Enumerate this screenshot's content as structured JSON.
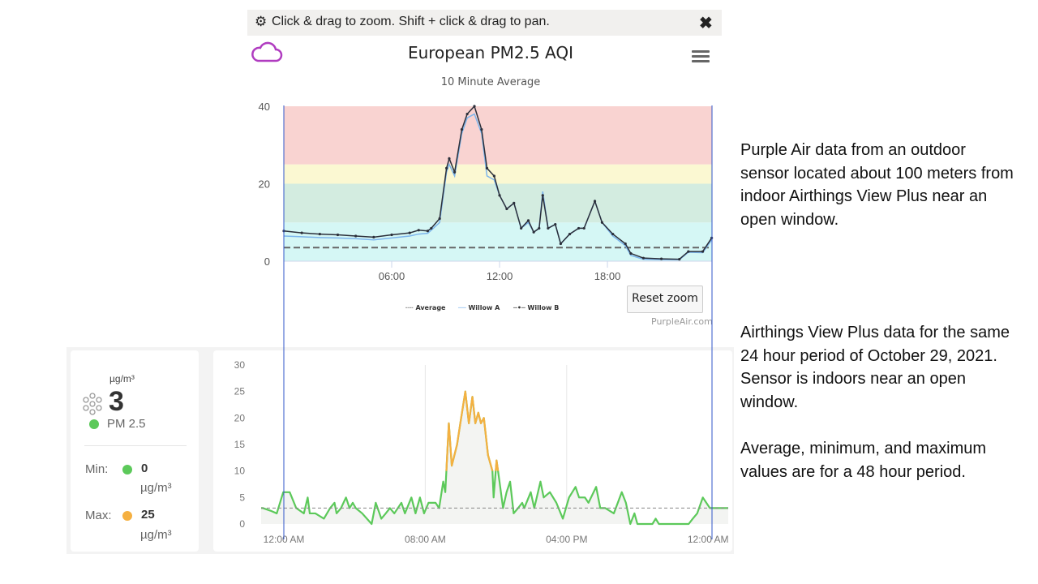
{
  "purpleair": {
    "toolbar_message": "Click & drag to zoom. Shift + click & drag to pan.",
    "title": "European PM2.5 AQI",
    "subtitle": "10 Minute Average",
    "reset_zoom_label": "Reset zoom",
    "credit": "PurpleAir.com",
    "logo_color": "#b03cc0"
  },
  "airthings": {
    "unit": "µg/m³",
    "current_value": "3",
    "sensor_label": "PM 2.5",
    "min_label": "Min:",
    "min_value": "0",
    "max_label": "Max:",
    "max_value": "25",
    "good_color": "#5cc95a",
    "warn_color": "#f5b041"
  },
  "notes": {
    "purpleair": "Purple Air data from an outdoor sensor located about 100 meters from indoor Airthings View Plus near an open window.",
    "airthings": "Airthings View Plus data for the same 24 hour period of October 29, 2021. Sensor is indoors near an open window.",
    "stats": "Average, minimum, and maximum values are for a 48 hour period."
  },
  "chart_data": [
    {
      "type": "line",
      "title": "European PM2.5 AQI",
      "subtitle": "10 Minute Average",
      "xlabel": "",
      "ylabel": "",
      "ylim": [
        0,
        40
      ],
      "yticks": [
        "0",
        "20",
        "40"
      ],
      "xticks": [
        "06:00",
        "12:00",
        "18:00"
      ],
      "grid": false,
      "legend": "bottom",
      "bands": [
        {
          "from": 0,
          "to": 10,
          "color": "#d5f7f5"
        },
        {
          "from": 10,
          "to": 20,
          "color": "#d3ece0"
        },
        {
          "from": 20,
          "to": 25,
          "color": "#fbf8d2"
        },
        {
          "from": 25,
          "to": 40,
          "color": "#f9d3d1"
        }
      ],
      "average": 3.5,
      "x": [
        "00:00",
        "01:00",
        "02:00",
        "03:00",
        "04:00",
        "05:00",
        "06:00",
        "07:00",
        "07:30",
        "08:00",
        "08:12",
        "08:40",
        "09:03",
        "09:12",
        "09:30",
        "09:54",
        "10:12",
        "10:36",
        "11:00",
        "11:18",
        "11:42",
        "12:00",
        "12:24",
        "12:48",
        "13:12",
        "13:36",
        "13:54",
        "14:12",
        "14:24",
        "14:42",
        "15:06",
        "15:24",
        "15:54",
        "16:24",
        "16:42",
        "17:18",
        "17:42",
        "18:18",
        "19:00",
        "19:18",
        "20:00",
        "21:00",
        "22:00",
        "22:30",
        "23:18",
        "23:48"
      ],
      "series": [
        {
          "name": "Average",
          "color": "#666666",
          "dash": true
        },
        {
          "name": "Willow A",
          "color": "#7cb5ec",
          "values": [
            6.5,
            6.3,
            6.1,
            6,
            5.8,
            5.5,
            6,
            6.5,
            7,
            7.2,
            8,
            10,
            23,
            25,
            22,
            33,
            37,
            38,
            33,
            22,
            21,
            17,
            13.5,
            15,
            8.5,
            10,
            7.5,
            8.5,
            18,
            8.5,
            9.5,
            4.5,
            7,
            8.5,
            8.5,
            15.5,
            10,
            6.5,
            4,
            1.5,
            0.5,
            0.4,
            0.4,
            2.3,
            2.2,
            5.5
          ]
        },
        {
          "name": "Willow B",
          "color": "#2b2f3a",
          "values": [
            7.8,
            7.3,
            7,
            6.8,
            6.5,
            6.2,
            6.8,
            7.3,
            8,
            7.8,
            8.5,
            11,
            24,
            26.5,
            23,
            34,
            38,
            40,
            34,
            24,
            22,
            17,
            13.5,
            15,
            8.5,
            10.5,
            7.5,
            8.5,
            17,
            8.5,
            9.5,
            4.5,
            7,
            8.5,
            8.5,
            15.5,
            10,
            7,
            4.5,
            2,
            0.8,
            0.6,
            0.5,
            2.5,
            2.5,
            6
          ]
        }
      ]
    },
    {
      "type": "area",
      "xlabel": "",
      "ylabel": "",
      "ylim": [
        0,
        30
      ],
      "yticks": [
        "0",
        "5",
        "10",
        "15",
        "20",
        "25",
        "30"
      ],
      "xticks": [
        "12:00 AM",
        "08:00 AM",
        "04:00 PM",
        "12:00 AM"
      ],
      "threshold": 10,
      "average": 3,
      "x": [
        "2021-10-28T22:49",
        "2021-10-28T23:15",
        "2021-10-28T23:36",
        "2021-10-28T23:58",
        "2021-10-29T00:20",
        "2021-10-29T00:42",
        "2021-10-29T01:08",
        "2021-10-29T01:21",
        "2021-10-29T01:28",
        "2021-10-29T01:47",
        "2021-10-29T02:16",
        "2021-10-29T02:37",
        "2021-10-29T02:52",
        "2021-10-29T02:59",
        "2021-10-29T03:14",
        "2021-10-29T03:31",
        "2021-10-29T03:43",
        "2021-10-29T03:54",
        "2021-10-29T04:04",
        "2021-10-29T04:26",
        "2021-10-29T04:58",
        "2021-10-29T05:12",
        "2021-10-29T05:31",
        "2021-10-29T05:46",
        "2021-10-29T06:00",
        "2021-10-29T06:15",
        "2021-10-29T06:39",
        "2021-10-29T06:51",
        "2021-10-29T07:13",
        "2021-10-29T07:27",
        "2021-10-29T07:42",
        "2021-10-29T07:56",
        "2021-10-29T08:11",
        "2021-10-29T08:35",
        "2021-10-29T08:47",
        "2021-10-29T09:01",
        "2021-10-29T09:08",
        "2021-10-29T09:20",
        "2021-10-29T09:30",
        "2021-10-29T09:48",
        "2021-10-29T09:59",
        "2021-10-29T10:16",
        "2021-10-29T10:28",
        "2021-10-29T10:40",
        "2021-10-29T10:50",
        "2021-10-29T11:00",
        "2021-10-29T11:09",
        "2021-10-29T11:19",
        "2021-10-29T11:33",
        "2021-10-29T11:48",
        "2021-10-29T11:52",
        "2021-10-29T12:02",
        "2021-10-29T12:12",
        "2021-10-29T12:24",
        "2021-10-29T12:36",
        "2021-10-29T12:48",
        "2021-10-29T13:00",
        "2021-10-29T13:15",
        "2021-10-29T13:29",
        "2021-10-29T13:36",
        "2021-10-29T13:58",
        "2021-10-29T14:10",
        "2021-10-29T14:31",
        "2021-10-29T14:42",
        "2021-10-29T15:03",
        "2021-10-29T15:25",
        "2021-10-29T15:47",
        "2021-10-29T16:08",
        "2021-10-29T16:30",
        "2021-10-29T16:42",
        "2021-10-29T17:02",
        "2021-10-29T17:14",
        "2021-10-29T17:40",
        "2021-10-29T17:54",
        "2021-10-29T18:11",
        "2021-10-29T18:40",
        "2021-10-29T19:07",
        "2021-10-29T19:21",
        "2021-10-29T19:36",
        "2021-10-29T19:50",
        "2021-10-29T20:00",
        "2021-10-29T20:51",
        "2021-10-29T21:02",
        "2021-10-29T21:13",
        "2021-10-29T22:54",
        "2021-10-29T23:08",
        "2021-10-29T23:23",
        "2021-10-29T23:42",
        "2021-10-30T00:06",
        "2021-10-30T00:57"
      ],
      "values": [
        3,
        2.5,
        2,
        6,
        6,
        3,
        2,
        5,
        2,
        2,
        1,
        3,
        4,
        2,
        3,
        5,
        3,
        4,
        3,
        2,
        0,
        4,
        1,
        2,
        3,
        2,
        4,
        2,
        5,
        2,
        5,
        2,
        4,
        4,
        3,
        8,
        6,
        19,
        11,
        15,
        19,
        25,
        19,
        24,
        19,
        21,
        19,
        20,
        13,
        10,
        5,
        12,
        8,
        3,
        6,
        8,
        2,
        3,
        4,
        3,
        6,
        3,
        8,
        5,
        6,
        4,
        1,
        5,
        7,
        5,
        5,
        4,
        7,
        3,
        3,
        2,
        6,
        4,
        0,
        2,
        0,
        0,
        1,
        0,
        0,
        1,
        2,
        5,
        3,
        3
      ]
    }
  ]
}
